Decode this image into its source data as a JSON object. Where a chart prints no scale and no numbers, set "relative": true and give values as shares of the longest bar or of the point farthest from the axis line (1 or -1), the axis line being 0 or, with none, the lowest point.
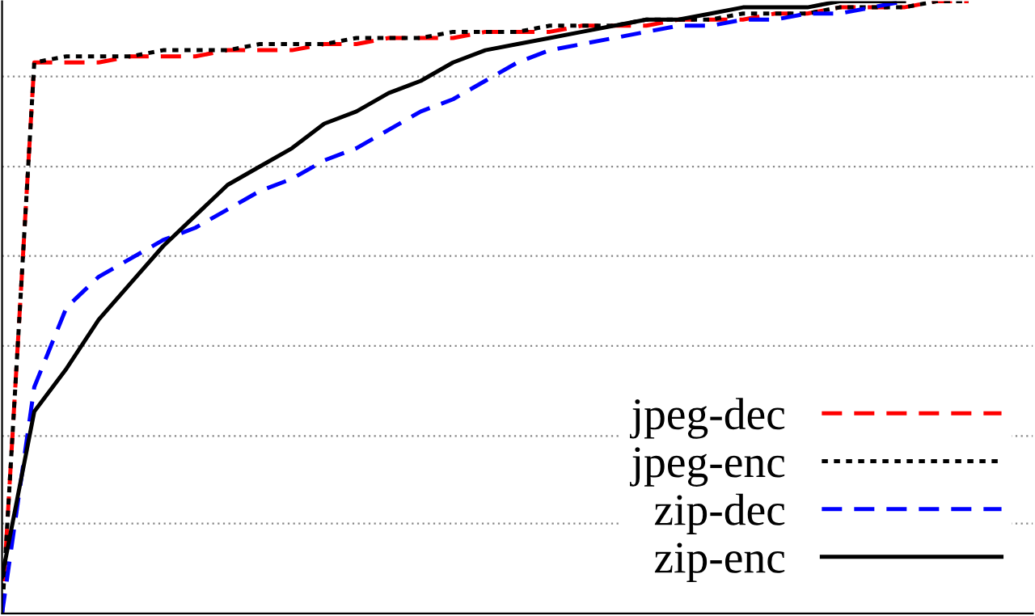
{
  "chart_data": {
    "type": "line",
    "relative": true,
    "grid": "y",
    "legend": "bottom right",
    "categories": [
      null,
      null,
      null,
      null,
      null,
      null,
      null,
      null,
      null,
      null,
      null,
      null,
      null,
      null,
      null,
      null,
      null,
      null,
      null,
      null,
      null,
      null,
      null,
      null,
      null,
      null,
      null,
      null,
      null,
      null,
      null,
      null,
      null
    ],
    "series": [
      {
        "name": "jpeg-dec",
        "color": "#ff0000",
        "line_style": "dashed",
        "values": [
          0,
          0.9,
          0.9,
          0.9,
          0.91,
          0.91,
          0.91,
          0.92,
          0.92,
          0.92,
          0.93,
          0.93,
          0.94,
          0.94,
          0.94,
          0.95,
          0.95,
          0.95,
          0.96,
          0.96,
          0.96,
          0.97,
          0.97,
          0.97,
          0.98,
          0.98,
          0.99,
          0.99,
          0.99,
          1.0,
          1.0,
          null,
          null
        ]
      },
      {
        "name": "jpeg-enc",
        "color": "#000000",
        "line_style": "dotted",
        "values": [
          0,
          0.9,
          0.91,
          0.91,
          0.91,
          0.92,
          0.92,
          0.92,
          0.93,
          0.93,
          0.93,
          0.94,
          0.94,
          0.94,
          0.95,
          0.95,
          0.95,
          0.96,
          0.96,
          0.96,
          0.97,
          0.97,
          0.97,
          0.98,
          0.98,
          0.98,
          0.99,
          0.99,
          0.99,
          1.0,
          1.0,
          null,
          null
        ]
      },
      {
        "name": "zip-dec",
        "color": "#0000ff",
        "line_style": "dashed",
        "values": [
          0,
          0.37,
          0.5,
          0.55,
          0.58,
          0.61,
          0.63,
          0.66,
          0.69,
          0.71,
          0.74,
          0.76,
          0.79,
          0.82,
          0.84,
          0.87,
          0.9,
          0.92,
          0.93,
          0.94,
          0.95,
          0.96,
          0.96,
          0.97,
          0.97,
          0.98,
          0.98,
          0.99,
          1.0,
          null,
          null,
          null,
          null
        ]
      },
      {
        "name": "zip-enc",
        "color": "#000000",
        "line_style": "solid",
        "values": [
          0.06,
          0.33,
          0.4,
          0.48,
          0.54,
          0.6,
          0.65,
          0.7,
          0.73,
          0.76,
          0.8,
          0.82,
          0.85,
          0.87,
          0.9,
          0.92,
          0.93,
          0.94,
          0.95,
          0.96,
          0.97,
          0.97,
          0.98,
          0.99,
          0.99,
          0.99,
          1.0,
          1.0,
          1.0,
          null,
          null,
          null,
          null
        ]
      }
    ]
  }
}
